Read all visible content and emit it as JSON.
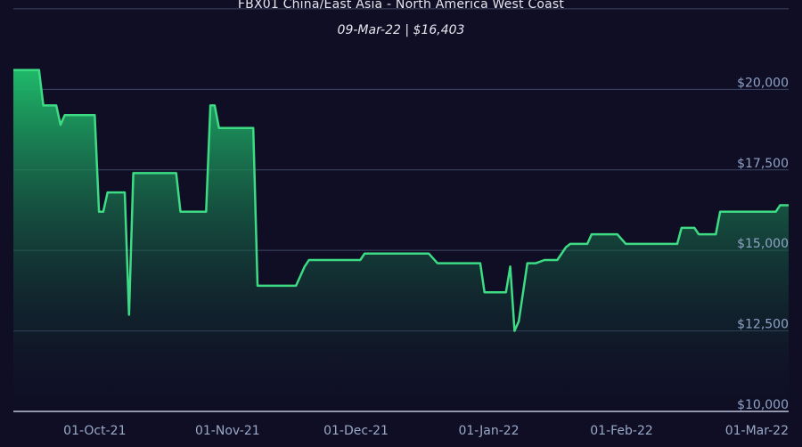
{
  "header": {
    "title": "FBX01 China/East Asia - North America West Coast",
    "subtitle": "09-Mar-22 | $16,403"
  },
  "colors": {
    "background": "#0f0e24",
    "line": "#3ddc84",
    "area_top": "#1fb96a",
    "gridline": "#3d4766",
    "tick_text": "#8fa3c7"
  },
  "chart_data": {
    "type": "area",
    "title": "FBX01 China/East Asia - North America West Coast",
    "subtitle": "09-Mar-22 | $16,403",
    "xlabel": "",
    "ylabel": "",
    "ylim": [
      10000,
      22000
    ],
    "y_ticks": [
      10000,
      12500,
      15000,
      17500,
      20000
    ],
    "y_tick_labels": [
      "$10,000",
      "$12,500",
      "$15,000",
      "$17,500",
      "$20,000"
    ],
    "x_ticks": [
      "2021-10-01",
      "2021-11-01",
      "2021-12-01",
      "2022-01-01",
      "2022-02-01",
      "2022-03-01"
    ],
    "x_tick_labels": [
      "01-Oct-21",
      "01-Nov-21",
      "01-Dec-21",
      "01-Jan-22",
      "01-Feb-22",
      "01-Mar-22"
    ],
    "xlim": [
      "2021-09-12",
      "2022-03-12"
    ],
    "grid": true,
    "series": [
      {
        "points": [
          [
            "2021-09-12",
            20600
          ],
          [
            "2021-09-18",
            20600
          ],
          [
            "2021-09-19",
            19500
          ],
          [
            "2021-09-22",
            19500
          ],
          [
            "2021-09-23",
            18900
          ],
          [
            "2021-09-24",
            19200
          ],
          [
            "2021-10-01",
            19200
          ],
          [
            "2021-10-02",
            16200
          ],
          [
            "2021-10-03",
            16200
          ],
          [
            "2021-10-04",
            16800
          ],
          [
            "2021-10-08",
            16800
          ],
          [
            "2021-10-09",
            13000
          ],
          [
            "2021-10-10",
            17400
          ],
          [
            "2021-10-20",
            17400
          ],
          [
            "2021-10-21",
            16200
          ],
          [
            "2021-10-27",
            16200
          ],
          [
            "2021-10-28",
            19500
          ],
          [
            "2021-10-29",
            19500
          ],
          [
            "2021-10-30",
            18800
          ],
          [
            "2021-11-07",
            18800
          ],
          [
            "2021-11-08",
            13900
          ],
          [
            "2021-11-17",
            13900
          ],
          [
            "2021-11-19",
            14500
          ],
          [
            "2021-11-20",
            14700
          ],
          [
            "2021-12-02",
            14700
          ],
          [
            "2021-12-03",
            14900
          ],
          [
            "2021-12-18",
            14900
          ],
          [
            "2021-12-20",
            14600
          ],
          [
            "2021-12-30",
            14600
          ],
          [
            "2021-12-31",
            13700
          ],
          [
            "2022-01-05",
            13700
          ],
          [
            "2022-01-06",
            14500
          ],
          [
            "2022-01-07",
            12500
          ],
          [
            "2022-01-08",
            12800
          ],
          [
            "2022-01-10",
            14600
          ],
          [
            "2022-01-12",
            14600
          ],
          [
            "2022-01-14",
            14700
          ],
          [
            "2022-01-17",
            14700
          ],
          [
            "2022-01-19",
            15100
          ],
          [
            "2022-01-20",
            15200
          ],
          [
            "2022-01-24",
            15200
          ],
          [
            "2022-01-25",
            15500
          ],
          [
            "2022-01-31",
            15500
          ],
          [
            "2022-02-02",
            15200
          ],
          [
            "2022-02-14",
            15200
          ],
          [
            "2022-02-15",
            15700
          ],
          [
            "2022-02-18",
            15700
          ],
          [
            "2022-02-19",
            15500
          ],
          [
            "2022-02-23",
            15500
          ],
          [
            "2022-02-24",
            16200
          ],
          [
            "2022-03-09",
            16200
          ],
          [
            "2022-03-10",
            16400
          ],
          [
            "2022-03-12",
            16400
          ]
        ]
      }
    ]
  }
}
